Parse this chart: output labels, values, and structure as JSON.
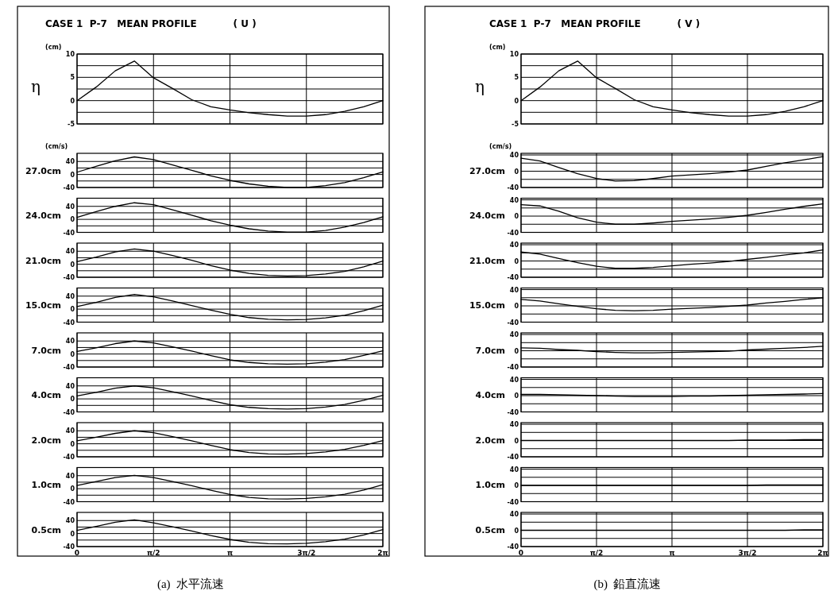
{
  "chart_data": [
    {
      "type": "line",
      "title": "CASE 1  P-7   MEAN PROFILE           ( U )",
      "ylabel": "η",
      "annotations": [
        "(cm)"
      ],
      "x": [
        0,
        0.3927,
        0.7854,
        1.1781,
        1.5708,
        1.9635,
        2.3562,
        2.7489,
        3.1416,
        3.5343,
        3.927,
        4.3197,
        4.7124,
        5.1051,
        5.4978,
        5.8905,
        6.2832
      ],
      "values": [
        0,
        2.9,
        6.4,
        8.5,
        4.9,
        2.6,
        0.2,
        -1.3,
        -2.0,
        -2.6,
        -3.0,
        -3.3,
        -3.3,
        -3.0,
        -2.3,
        -1.3,
        0
      ],
      "color": "#000000",
      "xlim": [
        0,
        6.2832
      ],
      "xticks": [
        {
          "value": 0,
          "label": null
        },
        {
          "value": 1.5708,
          "label": null
        },
        {
          "value": 3.1416,
          "label": null
        },
        {
          "value": 4.7124,
          "label": null
        },
        {
          "value": 6.2832,
          "label": null
        }
      ],
      "ylim": [
        -5,
        10
      ],
      "yticks": [
        -5,
        {
          "value": -2.5,
          "label": null
        },
        0,
        {
          "value": 2.5,
          "label": null
        },
        5,
        {
          "value": 7.5,
          "label": null
        },
        10
      ],
      "grid": true,
      "tick_labels": "y"
    },
    {
      "type": "line",
      "ylabel": "27.0cm",
      "annotations": [
        "(cm/s)"
      ],
      "x": [
        0,
        0.3927,
        0.7854,
        1.1781,
        1.5708,
        1.9635,
        2.3562,
        2.7489,
        3.1416,
        3.5343,
        3.927,
        4.3197,
        4.7124,
        5.1051,
        5.4978,
        5.8905,
        6.2832
      ],
      "values": [
        7,
        25,
        42,
        54,
        46,
        29,
        13,
        -4,
        -18,
        -29,
        -36,
        -40,
        -40,
        -34,
        -25,
        -10,
        8
      ],
      "color": "#000000",
      "xlim": [
        0,
        6.2832
      ],
      "xticks": [
        {
          "value": 0,
          "label": null
        },
        {
          "value": 1.5708,
          "label": null
        },
        {
          "value": 3.1416,
          "label": null
        },
        {
          "value": 4.7124,
          "label": null
        },
        {
          "value": 6.2832,
          "label": null
        }
      ],
      "ylim": [
        -40,
        65
      ],
      "yticks": [
        -40,
        {
          "value": -20,
          "label": null
        },
        0,
        {
          "value": 20,
          "label": null
        },
        40
      ],
      "grid": true,
      "tick_labels": "y"
    },
    {
      "type": "line",
      "ylabel": "24.0cm",
      "x": [
        0,
        0.3927,
        0.7854,
        1.1781,
        1.5708,
        1.9635,
        2.3562,
        2.7489,
        3.1416,
        3.5343,
        3.927,
        4.3197,
        4.7124,
        5.1051,
        5.4978,
        5.8905,
        6.2832
      ],
      "values": [
        6,
        24,
        40,
        51,
        45,
        29,
        13,
        -4,
        -18,
        -29,
        -36,
        -39,
        -39,
        -34,
        -24,
        -10,
        8
      ],
      "color": "#000000",
      "xlim": [
        0,
        6.2832
      ],
      "xticks": [
        {
          "value": 0,
          "label": null
        },
        {
          "value": 1.5708,
          "label": null
        },
        {
          "value": 3.1416,
          "label": null
        },
        {
          "value": 4.7124,
          "label": null
        },
        {
          "value": 6.2832,
          "label": null
        }
      ],
      "ylim": [
        -40,
        65
      ],
      "yticks": [
        -40,
        {
          "value": -20,
          "label": null
        },
        0,
        {
          "value": 20,
          "label": null
        },
        40
      ],
      "grid": true,
      "tick_labels": "y"
    },
    {
      "type": "line",
      "ylabel": "21.0cm",
      "x": [
        0,
        0.3927,
        0.7854,
        1.1781,
        1.5708,
        1.9635,
        2.3562,
        2.7489,
        3.1416,
        3.5343,
        3.927,
        4.3197,
        4.7124,
        5.1051,
        5.4978,
        5.8905,
        6.2832
      ],
      "values": [
        8,
        22,
        38,
        47,
        40,
        27,
        12,
        -4,
        -18,
        -28,
        -34,
        -36,
        -35,
        -30,
        -22,
        -8,
        10
      ],
      "color": "#000000",
      "xlim": [
        0,
        6.2832
      ],
      "xticks": [
        {
          "value": 0,
          "label": null
        },
        {
          "value": 1.5708,
          "label": null
        },
        {
          "value": 3.1416,
          "label": null
        },
        {
          "value": 4.7124,
          "label": null
        },
        {
          "value": 6.2832,
          "label": null
        }
      ],
      "ylim": [
        -40,
        65
      ],
      "yticks": [
        -40,
        {
          "value": -20,
          "label": null
        },
        0,
        {
          "value": 20,
          "label": null
        },
        40
      ],
      "grid": true,
      "tick_labels": "y"
    },
    {
      "type": "line",
      "ylabel": "15.0cm",
      "x": [
        0,
        0.3927,
        0.7854,
        1.1781,
        1.5708,
        1.9635,
        2.3562,
        2.7489,
        3.1416,
        3.5343,
        3.927,
        4.3197,
        4.7124,
        5.1051,
        5.4978,
        5.8905,
        6.2832
      ],
      "values": [
        8,
        21,
        36,
        45,
        38,
        25,
        11,
        -3,
        -16,
        -26,
        -31,
        -33,
        -32,
        -27,
        -19,
        -5,
        12
      ],
      "color": "#000000",
      "xlim": [
        0,
        6.2832
      ],
      "xticks": [
        {
          "value": 0,
          "label": null
        },
        {
          "value": 1.5708,
          "label": null
        },
        {
          "value": 3.1416,
          "label": null
        },
        {
          "value": 4.7124,
          "label": null
        },
        {
          "value": 6.2832,
          "label": null
        }
      ],
      "ylim": [
        -40,
        65
      ],
      "yticks": [
        -40,
        {
          "value": -20,
          "label": null
        },
        0,
        {
          "value": 20,
          "label": null
        },
        40
      ],
      "grid": true,
      "tick_labels": "y"
    },
    {
      "type": "line",
      "ylabel": "7.0cm",
      "x": [
        0,
        0.3927,
        0.7854,
        1.1781,
        1.5708,
        1.9635,
        2.3562,
        2.7489,
        3.1416,
        3.5343,
        3.927,
        4.3197,
        4.7124,
        5.1051,
        5.4978,
        5.8905,
        6.2832
      ],
      "values": [
        8,
        19,
        32,
        40,
        34,
        22,
        9,
        -5,
        -18,
        -26,
        -30,
        -31,
        -30,
        -25,
        -17,
        -4,
        10
      ],
      "color": "#000000",
      "xlim": [
        0,
        6.2832
      ],
      "xticks": [
        {
          "value": 0,
          "label": null
        },
        {
          "value": 1.5708,
          "label": null
        },
        {
          "value": 3.1416,
          "label": null
        },
        {
          "value": 4.7124,
          "label": null
        },
        {
          "value": 6.2832,
          "label": null
        }
      ],
      "ylim": [
        -40,
        65
      ],
      "yticks": [
        -40,
        {
          "value": -20,
          "label": null
        },
        0,
        {
          "value": 20,
          "label": null
        },
        40
      ],
      "grid": true,
      "tick_labels": "y"
    },
    {
      "type": "line",
      "ylabel": "4.0cm",
      "x": [
        0,
        0.3927,
        0.7854,
        1.1781,
        1.5708,
        1.9635,
        2.3562,
        2.7489,
        3.1416,
        3.5343,
        3.927,
        4.3197,
        4.7124,
        5.1051,
        5.4978,
        5.8905,
        6.2832
      ],
      "values": [
        9,
        20,
        33,
        40,
        34,
        22,
        9,
        -5,
        -18,
        -26,
        -30,
        -31,
        -30,
        -25,
        -17,
        -4,
        11
      ],
      "color": "#000000",
      "xlim": [
        0,
        6.2832
      ],
      "xticks": [
        {
          "value": 0,
          "label": null
        },
        {
          "value": 1.5708,
          "label": null
        },
        {
          "value": 3.1416,
          "label": null
        },
        {
          "value": 4.7124,
          "label": null
        },
        {
          "value": 6.2832,
          "label": null
        }
      ],
      "ylim": [
        -40,
        65
      ],
      "yticks": [
        -40,
        {
          "value": -20,
          "label": null
        },
        0,
        {
          "value": 20,
          "label": null
        },
        40
      ],
      "grid": true,
      "tick_labels": "y"
    },
    {
      "type": "line",
      "ylabel": "2.0cm",
      "x": [
        0,
        0.3927,
        0.7854,
        1.1781,
        1.5708,
        1.9635,
        2.3562,
        2.7489,
        3.1416,
        3.5343,
        3.927,
        4.3197,
        4.7124,
        5.1051,
        5.4978,
        5.8905,
        6.2832
      ],
      "values": [
        9,
        20,
        32,
        40,
        34,
        22,
        9,
        -5,
        -18,
        -27,
        -31,
        -32,
        -30,
        -25,
        -17,
        -5,
        10
      ],
      "color": "#000000",
      "xlim": [
        0,
        6.2832
      ],
      "xticks": [
        {
          "value": 0,
          "label": null
        },
        {
          "value": 1.5708,
          "label": null
        },
        {
          "value": 3.1416,
          "label": null
        },
        {
          "value": 4.7124,
          "label": null
        },
        {
          "value": 6.2832,
          "label": null
        }
      ],
      "ylim": [
        -40,
        65
      ],
      "yticks": [
        -40,
        {
          "value": -20,
          "label": null
        },
        0,
        {
          "value": 20,
          "label": null
        },
        40
      ],
      "grid": true,
      "tick_labels": "y"
    },
    {
      "type": "line",
      "ylabel": "1.0cm",
      "x": [
        0,
        0.3927,
        0.7854,
        1.1781,
        1.5708,
        1.9635,
        2.3562,
        2.7489,
        3.1416,
        3.5343,
        3.927,
        4.3197,
        4.7124,
        5.1051,
        5.4978,
        5.8905,
        6.2832
      ],
      "values": [
        10,
        22,
        34,
        41,
        34,
        22,
        9,
        -5,
        -18,
        -27,
        -31,
        -32,
        -30,
        -25,
        -17,
        -4,
        12
      ],
      "color": "#000000",
      "xlim": [
        0,
        6.2832
      ],
      "xticks": [
        {
          "value": 0,
          "label": null
        },
        {
          "value": 1.5708,
          "label": null
        },
        {
          "value": 3.1416,
          "label": null
        },
        {
          "value": 4.7124,
          "label": null
        },
        {
          "value": 6.2832,
          "label": null
        }
      ],
      "ylim": [
        -40,
        65
      ],
      "yticks": [
        -40,
        {
          "value": -20,
          "label": null
        },
        0,
        {
          "value": 20,
          "label": null
        },
        40
      ],
      "grid": true,
      "tick_labels": "y"
    },
    {
      "type": "line",
      "ylabel": "0.5cm",
      "annotations": [
        "(a)  水平流速"
      ],
      "x": [
        0,
        0.3927,
        0.7854,
        1.1781,
        1.5708,
        1.9635,
        2.3562,
        2.7489,
        3.1416,
        3.5343,
        3.927,
        4.3197,
        4.7124,
        5.1051,
        5.4978,
        5.8905,
        6.2832
      ],
      "values": [
        10,
        22,
        35,
        42,
        33,
        21,
        8,
        -6,
        -18,
        -27,
        -31,
        -32,
        -30,
        -25,
        -17,
        -4,
        12
      ],
      "color": "#000000",
      "xlim": [
        0,
        6.2832
      ],
      "xticks": [
        0,
        {
          "value": 1.5708,
          "label": "π/2"
        },
        {
          "value": 3.1416,
          "label": "π"
        },
        {
          "value": 4.7124,
          "label": "3π/2"
        },
        {
          "value": 6.2832,
          "label": "2π"
        }
      ],
      "ylim": [
        -40,
        65
      ],
      "yticks": [
        -40,
        {
          "value": -20,
          "label": null
        },
        0,
        {
          "value": 20,
          "label": null
        },
        40
      ],
      "grid": true
    },
    {
      "type": "line",
      "title": "CASE 1  P-7   MEAN PROFILE           ( V )",
      "ylabel": "η",
      "annotations": [
        "(cm)"
      ],
      "x": [
        0,
        0.3927,
        0.7854,
        1.1781,
        1.5708,
        1.9635,
        2.3562,
        2.7489,
        3.1416,
        3.5343,
        3.927,
        4.3197,
        4.7124,
        5.1051,
        5.4978,
        5.8905,
        6.2832
      ],
      "values": [
        0,
        2.9,
        6.4,
        8.5,
        4.9,
        2.6,
        0.2,
        -1.3,
        -2.0,
        -2.6,
        -3.0,
        -3.3,
        -3.3,
        -3.0,
        -2.3,
        -1.3,
        0
      ],
      "color": "#000000",
      "xlim": [
        0,
        6.2832
      ],
      "xticks": [
        {
          "value": 0,
          "label": null
        },
        {
          "value": 1.5708,
          "label": null
        },
        {
          "value": 3.1416,
          "label": null
        },
        {
          "value": 4.7124,
          "label": null
        },
        {
          "value": 6.2832,
          "label": null
        }
      ],
      "ylim": [
        -5,
        10
      ],
      "yticks": [
        -5,
        {
          "value": -2.5,
          "label": null
        },
        0,
        {
          "value": 2.5,
          "label": null
        },
        5,
        {
          "value": 7.5,
          "label": null
        },
        10
      ],
      "grid": true,
      "tick_labels": "y"
    },
    {
      "type": "line",
      "ylabel": "27.0cm",
      "annotations": [
        "(cm/s)"
      ],
      "x": [
        0,
        0.3927,
        0.7854,
        1.1781,
        1.5708,
        1.9635,
        2.3562,
        2.7489,
        3.1416,
        3.5343,
        3.927,
        4.3197,
        4.7124,
        5.1051,
        5.4978,
        5.8905,
        6.2832
      ],
      "values": [
        32,
        25,
        9,
        -6,
        -18,
        -24,
        -23,
        -18,
        -12,
        -9,
        -6,
        -2,
        3,
        12,
        21,
        28,
        36
      ],
      "color": "#000000",
      "xlim": [
        0,
        6.2832
      ],
      "xticks": [
        {
          "value": 0,
          "label": null
        },
        {
          "value": 1.5708,
          "label": null
        },
        {
          "value": 3.1416,
          "label": null
        },
        {
          "value": 4.7124,
          "label": null
        },
        {
          "value": 6.2832,
          "label": null
        }
      ],
      "ylim": [
        -40,
        44
      ],
      "yticks": [
        -40,
        {
          "value": -20,
          "label": null
        },
        0,
        {
          "value": 20,
          "label": null
        },
        40
      ],
      "grid": true,
      "tick_labels": "y"
    },
    {
      "type": "line",
      "ylabel": "24.0cm",
      "x": [
        0,
        0.3927,
        0.7854,
        1.1781,
        1.5708,
        1.9635,
        2.3562,
        2.7489,
        3.1416,
        3.5343,
        3.927,
        4.3197,
        4.7124,
        5.1051,
        5.4978,
        5.8905,
        6.2832
      ],
      "values": [
        28,
        25,
        12,
        -4,
        -15,
        -20,
        -20,
        -17,
        -13,
        -10,
        -7,
        -3,
        2,
        9,
        17,
        24,
        30
      ],
      "color": "#000000",
      "xlim": [
        0,
        6.2832
      ],
      "xticks": [
        {
          "value": 0,
          "label": null
        },
        {
          "value": 1.5708,
          "label": null
        },
        {
          "value": 3.1416,
          "label": null
        },
        {
          "value": 4.7124,
          "label": null
        },
        {
          "value": 6.2832,
          "label": null
        }
      ],
      "ylim": [
        -40,
        44
      ],
      "yticks": [
        -40,
        {
          "value": -20,
          "label": null
        },
        0,
        {
          "value": 20,
          "label": null
        },
        40
      ],
      "grid": true,
      "tick_labels": "y"
    },
    {
      "type": "line",
      "ylabel": "21.0cm",
      "x": [
        0,
        0.3927,
        0.7854,
        1.1781,
        1.5708,
        1.9635,
        2.3562,
        2.7489,
        3.1416,
        3.5343,
        3.927,
        4.3197,
        4.7124,
        5.1051,
        5.4978,
        5.8905,
        6.2832
      ],
      "values": [
        22,
        17,
        6,
        -4,
        -13,
        -18,
        -18,
        -16,
        -12,
        -8,
        -5,
        -1,
        4,
        9,
        15,
        20,
        27
      ],
      "color": "#000000",
      "xlim": [
        0,
        6.2832
      ],
      "xticks": [
        {
          "value": 0,
          "label": null
        },
        {
          "value": 1.5708,
          "label": null
        },
        {
          "value": 3.1416,
          "label": null
        },
        {
          "value": 4.7124,
          "label": null
        },
        {
          "value": 6.2832,
          "label": null
        }
      ],
      "ylim": [
        -40,
        44
      ],
      "yticks": [
        -40,
        {
          "value": -20,
          "label": null
        },
        0,
        {
          "value": 20,
          "label": null
        },
        40
      ],
      "grid": true,
      "tick_labels": "y"
    },
    {
      "type": "line",
      "ylabel": "15.0cm",
      "x": [
        0,
        0.3927,
        0.7854,
        1.1781,
        1.5708,
        1.9635,
        2.3562,
        2.7489,
        3.1416,
        3.5343,
        3.927,
        4.3197,
        4.7124,
        5.1051,
        5.4978,
        5.8905,
        6.2832
      ],
      "values": [
        16,
        12,
        5,
        -1,
        -7,
        -11,
        -12,
        -11,
        -8,
        -6,
        -4,
        -1,
        2,
        7,
        11,
        16,
        20
      ],
      "color": "#000000",
      "xlim": [
        0,
        6.2832
      ],
      "xticks": [
        {
          "value": 0,
          "label": null
        },
        {
          "value": 1.5708,
          "label": null
        },
        {
          "value": 3.1416,
          "label": null
        },
        {
          "value": 4.7124,
          "label": null
        },
        {
          "value": 6.2832,
          "label": null
        }
      ],
      "ylim": [
        -40,
        44
      ],
      "yticks": [
        -40,
        {
          "value": -20,
          "label": null
        },
        0,
        {
          "value": 20,
          "label": null
        },
        40
      ],
      "grid": true,
      "tick_labels": "y"
    },
    {
      "type": "line",
      "ylabel": "7.0cm",
      "x": [
        0,
        0.3927,
        0.7854,
        1.1781,
        1.5708,
        1.9635,
        2.3562,
        2.7489,
        3.1416,
        3.5343,
        3.927,
        4.3197,
        4.7124,
        5.1051,
        5.4978,
        5.8905,
        6.2832
      ],
      "values": [
        7,
        6,
        3,
        1,
        -2,
        -4,
        -5,
        -5,
        -4,
        -3,
        -2,
        -1,
        2,
        4,
        6,
        8,
        11
      ],
      "color": "#000000",
      "xlim": [
        0,
        6.2832
      ],
      "xticks": [
        {
          "value": 0,
          "label": null
        },
        {
          "value": 1.5708,
          "label": null
        },
        {
          "value": 3.1416,
          "label": null
        },
        {
          "value": 4.7124,
          "label": null
        },
        {
          "value": 6.2832,
          "label": null
        }
      ],
      "ylim": [
        -40,
        44
      ],
      "yticks": [
        -40,
        {
          "value": -20,
          "label": null
        },
        0,
        {
          "value": 20,
          "label": null
        },
        40
      ],
      "grid": true,
      "tick_labels": "y"
    },
    {
      "type": "line",
      "ylabel": "4.0cm",
      "x": [
        0,
        0.3927,
        0.7854,
        1.1781,
        1.5708,
        1.9635,
        2.3562,
        2.7489,
        3.1416,
        3.5343,
        3.927,
        4.3197,
        4.7124,
        5.1051,
        5.4978,
        5.8905,
        6.2832
      ],
      "values": [
        3,
        3,
        2,
        1,
        0,
        -1,
        -2,
        -2,
        -2,
        -1,
        -1,
        0,
        1,
        2,
        3,
        4,
        5
      ],
      "color": "#000000",
      "xlim": [
        0,
        6.2832
      ],
      "xticks": [
        {
          "value": 0,
          "label": null
        },
        {
          "value": 1.5708,
          "label": null
        },
        {
          "value": 3.1416,
          "label": null
        },
        {
          "value": 4.7124,
          "label": null
        },
        {
          "value": 6.2832,
          "label": null
        }
      ],
      "ylim": [
        -40,
        44
      ],
      "yticks": [
        -40,
        {
          "value": -20,
          "label": null
        },
        0,
        {
          "value": 20,
          "label": null
        },
        40
      ],
      "grid": true,
      "tick_labels": "y"
    },
    {
      "type": "line",
      "ylabel": "2.0cm",
      "x": [
        0,
        0.3927,
        0.7854,
        1.1781,
        1.5708,
        1.9635,
        2.3562,
        2.7489,
        3.1416,
        3.5343,
        3.927,
        4.3197,
        4.7124,
        5.1051,
        5.4978,
        5.8905,
        6.2832
      ],
      "values": [
        0,
        0,
        0,
        0,
        0,
        0,
        0,
        0,
        0,
        0,
        0,
        0,
        1,
        1,
        1,
        2,
        2
      ],
      "color": "#000000",
      "xlim": [
        0,
        6.2832
      ],
      "xticks": [
        {
          "value": 0,
          "label": null
        },
        {
          "value": 1.5708,
          "label": null
        },
        {
          "value": 3.1416,
          "label": null
        },
        {
          "value": 4.7124,
          "label": null
        },
        {
          "value": 6.2832,
          "label": null
        }
      ],
      "ylim": [
        -40,
        44
      ],
      "yticks": [
        -40,
        {
          "value": -20,
          "label": null
        },
        0,
        {
          "value": 20,
          "label": null
        },
        40
      ],
      "grid": true,
      "tick_labels": "y"
    },
    {
      "type": "line",
      "ylabel": "1.0cm",
      "x": [
        0,
        0.3927,
        0.7854,
        1.1781,
        1.5708,
        1.9635,
        2.3562,
        2.7489,
        3.1416,
        3.5343,
        3.927,
        4.3197,
        4.7124,
        5.1051,
        5.4978,
        5.8905,
        6.2832
      ],
      "values": [
        0,
        0,
        0,
        0,
        0,
        0,
        0,
        0,
        0,
        0,
        0,
        0,
        0,
        1,
        1,
        1,
        1
      ],
      "color": "#000000",
      "xlim": [
        0,
        6.2832
      ],
      "xticks": [
        {
          "value": 0,
          "label": null
        },
        {
          "value": 1.5708,
          "label": null
        },
        {
          "value": 3.1416,
          "label": null
        },
        {
          "value": 4.7124,
          "label": null
        },
        {
          "value": 6.2832,
          "label": null
        }
      ],
      "ylim": [
        -40,
        44
      ],
      "yticks": [
        -40,
        {
          "value": -20,
          "label": null
        },
        0,
        {
          "value": 20,
          "label": null
        },
        40
      ],
      "grid": true,
      "tick_labels": "y"
    },
    {
      "type": "line",
      "ylabel": "0.5cm",
      "annotations": [
        "(b)  鉛直流速"
      ],
      "x": [
        0,
        0.3927,
        0.7854,
        1.1781,
        1.5708,
        1.9635,
        2.3562,
        2.7489,
        3.1416,
        3.5343,
        3.927,
        4.3197,
        4.7124,
        5.1051,
        5.4978,
        5.8905,
        6.2832
      ],
      "values": [
        0,
        0,
        0,
        0,
        0,
        0,
        0,
        0,
        0,
        0,
        0,
        0,
        0,
        0,
        0,
        1,
        1
      ],
      "color": "#000000",
      "xlim": [
        0,
        6.2832
      ],
      "xticks": [
        0,
        {
          "value": 1.5708,
          "label": "π/2"
        },
        {
          "value": 3.1416,
          "label": "π"
        },
        {
          "value": 4.7124,
          "label": "3π/2"
        },
        {
          "value": 6.2832,
          "label": "2π"
        }
      ],
      "ylim": [
        -40,
        44
      ],
      "yticks": [
        -40,
        {
          "value": -20,
          "label": null
        },
        0,
        {
          "value": 20,
          "label": null
        },
        40
      ],
      "grid": true
    }
  ]
}
